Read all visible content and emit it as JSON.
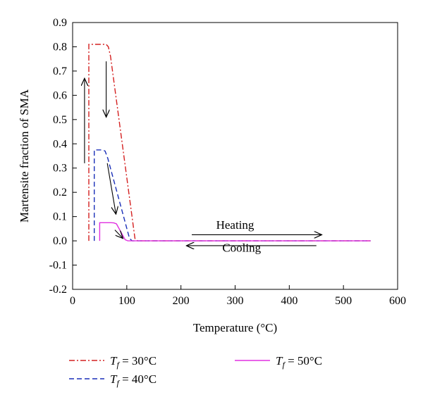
{
  "chart_data": {
    "type": "line",
    "xlabel": "Temperature (°C)",
    "ylabel": "Martensite fraction of SMA",
    "xlim": [
      0,
      600
    ],
    "ylim": [
      -0.2,
      0.9
    ],
    "x_ticks": [
      0,
      100,
      200,
      300,
      400,
      500,
      600
    ],
    "y_ticks": [
      -0.2,
      -0.1,
      0.0,
      0.1,
      0.2,
      0.3,
      0.4,
      0.5,
      0.6,
      0.7,
      0.8,
      0.9
    ],
    "grid": false,
    "legend_position": "bottom",
    "series": [
      {
        "name": "T_f = 30°C",
        "label_symbol": "T",
        "label_sub": "f",
        "label_value": " = 30°C",
        "color": "#d42020",
        "style": "dashdot",
        "x": [
          30,
          30,
          34,
          62,
          66,
          70,
          115,
          120,
          550
        ],
        "y": [
          0.0,
          0.81,
          0.81,
          0.81,
          0.8,
          0.76,
          0.01,
          0.0,
          0.0
        ]
      },
      {
        "name": "T_f = 40°C",
        "label_symbol": "T",
        "label_sub": "f",
        "label_value": " = 40°C",
        "color": "#1a2fb8",
        "style": "dashed",
        "x": [
          40,
          40,
          44,
          55,
          60,
          65,
          105,
          110,
          550
        ],
        "y": [
          0.0,
          0.375,
          0.375,
          0.375,
          0.37,
          0.34,
          0.01,
          0.0,
          0.0
        ]
      },
      {
        "name": "T_f = 50°C",
        "label_symbol": "T",
        "label_sub": "f",
        "label_value": " = 50°C",
        "color": "#e030e0",
        "style": "solid",
        "x": [
          50,
          50,
          53,
          71,
          76,
          81,
          97,
          102,
          550
        ],
        "y": [
          0.0,
          0.075,
          0.075,
          0.075,
          0.074,
          0.07,
          0.005,
          0.0,
          0.0
        ]
      }
    ],
    "annotations": [
      {
        "text": "Heating",
        "x": 300,
        "y": 0.05
      },
      {
        "text": "Cooling",
        "x": 312,
        "y": -0.045
      }
    ],
    "arrows": [
      {
        "from": [
          22,
          0.32
        ],
        "to": [
          22,
          0.67
        ]
      },
      {
        "from": [
          62,
          0.74
        ],
        "to": [
          62,
          0.51
        ]
      },
      {
        "from": [
          64,
          0.32
        ],
        "to": [
          80,
          0.11
        ]
      },
      {
        "from": [
          78,
          0.045
        ],
        "to": [
          93,
          0.01
        ]
      },
      {
        "from": [
          220,
          0.025
        ],
        "to": [
          460,
          0.025
        ]
      },
      {
        "from": [
          450,
          -0.02
        ],
        "to": [
          210,
          -0.02
        ]
      }
    ]
  }
}
